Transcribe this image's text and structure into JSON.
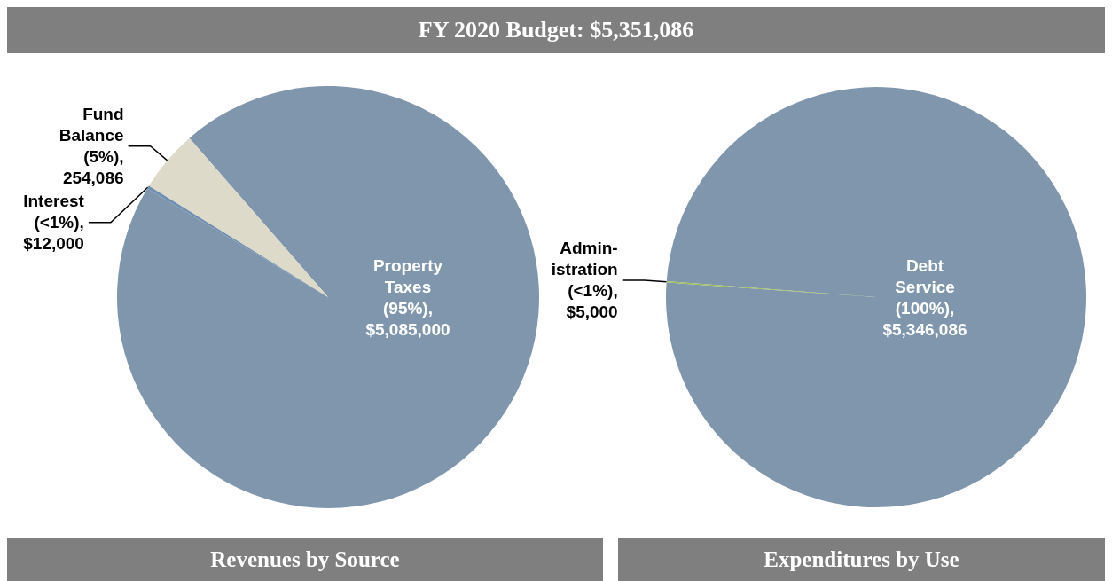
{
  "chart_data": [
    {
      "type": "pie",
      "title": "Revenues by Source",
      "annotations": [
        "FY 2020 Budget: $5,351,086"
      ],
      "categories": [
        "Property Taxes",
        "Fund Balance",
        "Interest"
      ],
      "values": [
        5085000,
        254086,
        12000
      ],
      "colors": [
        "#7f96ad",
        "#dddac9",
        "#6f8fb0"
      ],
      "value_labels": [
        "(95%), $5,085,000",
        "(5%), 254,086",
        "(<1%), $12,000"
      ]
    },
    {
      "type": "pie",
      "title": "Expenditures by Use",
      "categories": [
        "Debt Service",
        "Admin-istration"
      ],
      "values": [
        5346086,
        5000
      ],
      "colors": [
        "#7f96ad",
        "#9bbb59"
      ],
      "value_labels": [
        "(100%), $5,346,086",
        "(<1%), $5,000"
      ]
    }
  ]
}
